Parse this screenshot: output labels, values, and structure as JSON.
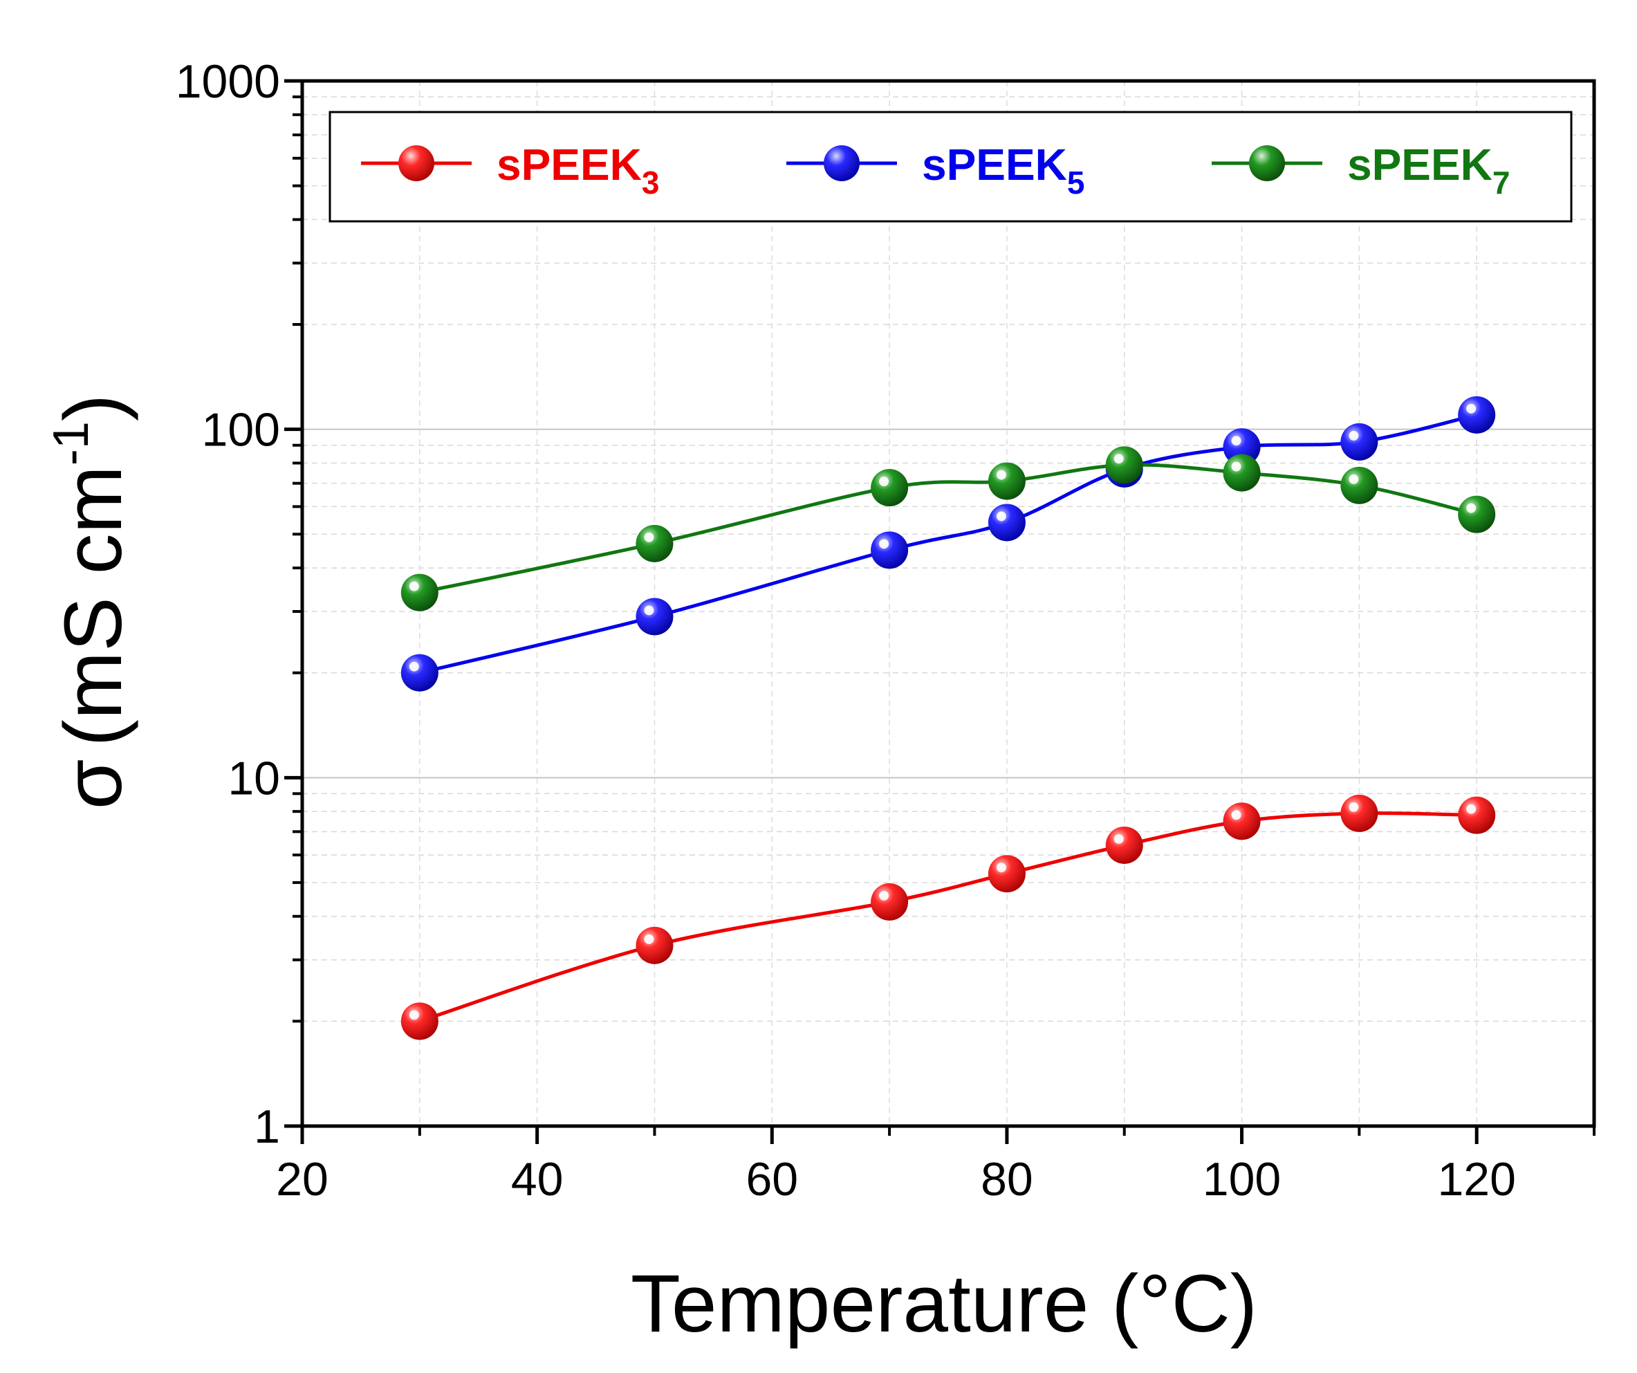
{
  "chart_data": {
    "type": "line",
    "x_axis": {
      "label": "Temperature (°C)",
      "range": [
        20,
        130
      ],
      "ticks": [
        20,
        40,
        60,
        80,
        100,
        120
      ],
      "tick_labels": [
        "20",
        "40",
        "60",
        "80",
        "100",
        "120"
      ],
      "minor_ticks": [
        30,
        50,
        70,
        90,
        110,
        130
      ]
    },
    "y_axis": {
      "label_symbol": "σ",
      "label_main": "(mS cm",
      "label_sup": "-1",
      "label_close": ")",
      "scale": "log",
      "range": [
        1,
        1000
      ],
      "ticks": [
        1,
        10,
        100,
        1000
      ],
      "tick_labels": [
        "1",
        "10",
        "100",
        "1000"
      ]
    },
    "grid": true,
    "legend": {
      "placement": "top",
      "entries": [
        {
          "base": "sPEEK",
          "sub": "3",
          "color": "#ee0000"
        },
        {
          "base": "sPEEK",
          "sub": "5",
          "color": "#0000ee"
        },
        {
          "base": "sPEEK",
          "sub": "7",
          "color": "#117711"
        }
      ]
    },
    "series": [
      {
        "name": "sPEEK3",
        "color": "#ee0000",
        "x": [
          30,
          50,
          70,
          80,
          90,
          100,
          110,
          120
        ],
        "y": [
          2.0,
          3.3,
          4.4,
          5.3,
          6.4,
          7.5,
          7.9,
          7.8
        ]
      },
      {
        "name": "sPEEK5",
        "color": "#0000ee",
        "x": [
          30,
          50,
          70,
          80,
          90,
          100,
          110,
          120
        ],
        "y": [
          20,
          29,
          45,
          54,
          77,
          89,
          92,
          110
        ]
      },
      {
        "name": "sPEEK7",
        "color": "#117711",
        "x": [
          30,
          50,
          70,
          80,
          90,
          100,
          110,
          120
        ],
        "y": [
          34,
          47,
          68,
          71,
          79,
          75,
          69,
          57
        ]
      }
    ]
  }
}
